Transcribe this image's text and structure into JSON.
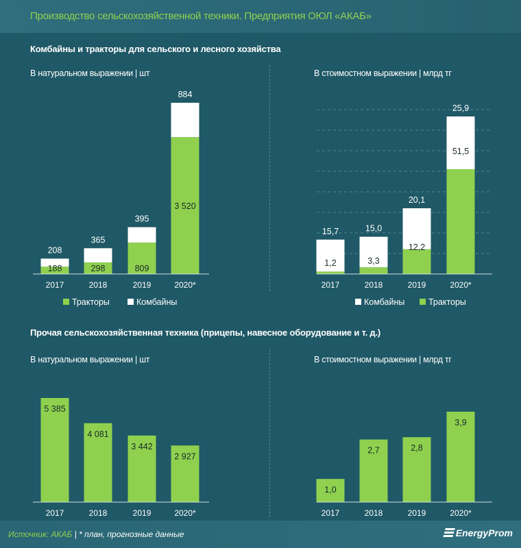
{
  "title": "Производство сельскохозяйственной техники. Предприятия ОЮЛ «АКАБ»",
  "section1": "Комбайны  и тракторы  для сельского  и лесного хозяйства",
  "section2": "Прочая сельскохозяйственная  техника (прицепы, навесное оборудование и т. д.)",
  "footer": {
    "source": "Источник: АКАБ",
    "note": "* план, прогнозные данные",
    "logo": "EnergyProm"
  },
  "colors": {
    "green": "#8fd14f",
    "white": "#ffffff",
    "background": "#1f5866"
  },
  "chart_data": [
    {
      "type": "bar",
      "stacked": true,
      "subtitle": "В натуральном выражении | шт",
      "categories": [
        "2017",
        "2018",
        "2019",
        "2020*"
      ],
      "series": [
        {
          "name": "Тракторы",
          "color": "#8fd14f",
          "values": [
            188,
            298,
            809,
            3520
          ]
        },
        {
          "name": "Комбайны",
          "color": "#ffffff",
          "values": [
            208,
            365,
            395,
            884
          ]
        }
      ],
      "legend": "bottom",
      "legend_order": [
        "Тракторы",
        "Комбайны"
      ],
      "grid": false
    },
    {
      "type": "bar",
      "stacked": true,
      "subtitle": "В стоимостном выражении | млрд тг",
      "categories": [
        "2017",
        "2018",
        "2019",
        "2020*"
      ],
      "series": [
        {
          "name": "Тракторы",
          "color": "#8fd14f",
          "values": [
            1.2,
            3.3,
            12.2,
            51.5
          ]
        },
        {
          "name": "Комбайны",
          "color": "#ffffff",
          "values": [
            15.7,
            15.0,
            20.1,
            25.9
          ]
        }
      ],
      "value_labels": {
        "Тракторы": [
          "1,2",
          "3,3",
          "12,2",
          "51,5"
        ],
        "Комбайны": [
          "15,7",
          "15,0",
          "20,1",
          "25,9"
        ]
      },
      "legend": "bottom",
      "legend_order": [
        "Комбайны",
        "Тракторы"
      ],
      "grid": true
    },
    {
      "type": "bar",
      "subtitle": "В натуральном выражении | шт",
      "categories": [
        "2017",
        "2018",
        "2019",
        "2020*"
      ],
      "series": [
        {
          "color": "#8fd14f",
          "values": [
            5385,
            4081,
            3442,
            2927
          ]
        }
      ],
      "value_labels": [
        "5 385",
        "4 081",
        "3 442",
        "2 927"
      ],
      "grid": false
    },
    {
      "type": "bar",
      "subtitle": "В стоимостном выражении | млрд тг",
      "categories": [
        "2017",
        "2018",
        "2019",
        "2020*"
      ],
      "series": [
        {
          "color": "#8fd14f",
          "values": [
            1.0,
            2.7,
            2.8,
            3.9
          ]
        }
      ],
      "value_labels": [
        "1,0",
        "2,7",
        "2,8",
        "3,9"
      ],
      "grid": false
    }
  ],
  "labels1": [
    "208",
    "365",
    "395",
    "884"
  ],
  "inner1": [
    "188",
    "298",
    "809",
    "3 520"
  ]
}
